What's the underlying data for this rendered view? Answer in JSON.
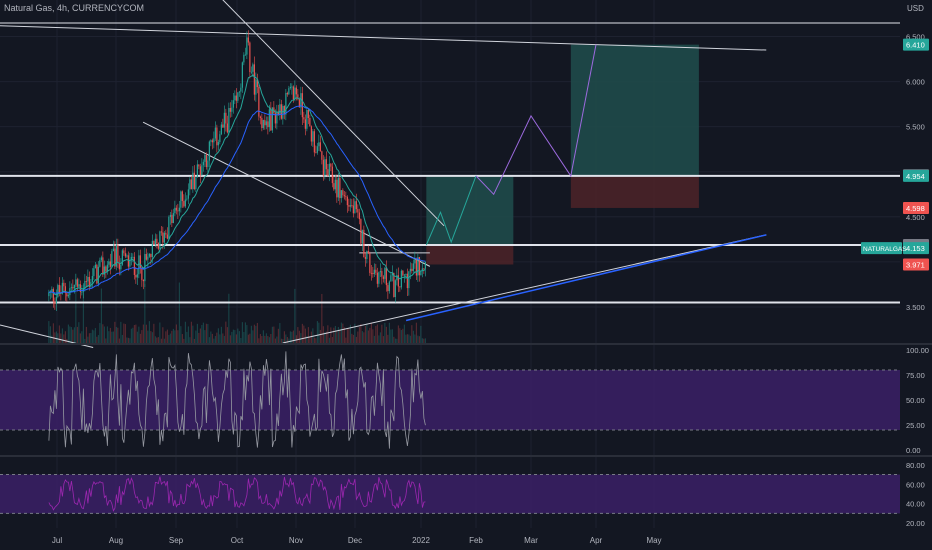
{
  "header": {
    "symbol_line": "Natural Gas, 4h, CURRENCYCOM",
    "currency": "USD"
  },
  "colors": {
    "background": "#131722",
    "grid": "#1e2230",
    "axis_text": "#b2b5be",
    "candle_up": "#26a69a",
    "candle_down": "#ef5350",
    "ema_fast": "#26a69a",
    "ema_slow": "#2962ff",
    "oscillator": "#9598a1",
    "rsi": "#9c27b0",
    "band": "#3b2066",
    "target_box": "#1f4a4a",
    "stop_box": "#4a2228",
    "projection": "#9c6ade",
    "trendline": "#d1d4dc"
  },
  "chart_data": [
    {
      "type": "candlestick",
      "title": "Natural Gas, 4h, CURRENCYCOM",
      "x_labels": [
        "Jul",
        "Aug",
        "Sep",
        "Oct",
        "Nov",
        "Dec",
        "2022",
        "Feb",
        "Mar",
        "Apr",
        "May"
      ],
      "y_ticks": [
        3.5,
        4.0,
        4.5,
        5.0,
        5.5,
        6.0,
        6.5
      ],
      "y_tick_labels": [
        "3.500",
        "4.000",
        "4.500",
        "5.000",
        "5.500",
        "6.000",
        "6.500"
      ],
      "ylim": [
        3.1,
        6.75
      ],
      "approx_closes": [
        {
          "date": "2021-06-28",
          "close": 3.62
        },
        {
          "date": "2021-07-15",
          "close": 3.75
        },
        {
          "date": "2021-08-01",
          "close": 4.05
        },
        {
          "date": "2021-08-15",
          "close": 3.92
        },
        {
          "date": "2021-09-01",
          "close": 4.55
        },
        {
          "date": "2021-09-15",
          "close": 5.15
        },
        {
          "date": "2021-10-01",
          "close": 5.75
        },
        {
          "date": "2021-10-06",
          "close": 6.4
        },
        {
          "date": "2021-10-15",
          "close": 5.5
        },
        {
          "date": "2021-11-01",
          "close": 5.9
        },
        {
          "date": "2021-11-15",
          "close": 5.05
        },
        {
          "date": "2021-12-01",
          "close": 4.55
        },
        {
          "date": "2021-12-08",
          "close": 3.95
        },
        {
          "date": "2021-12-20",
          "close": 3.72
        },
        {
          "date": "2022-01-04",
          "close": 4.05
        }
      ],
      "horizontal_levels": [
        6.65,
        4.954,
        4.187,
        3.55
      ],
      "price_labels": [
        {
          "text": "6.410",
          "value": 6.41,
          "color": "#26a69a"
        },
        {
          "text": "4.961",
          "value": 4.961,
          "color": "#787b86"
        },
        {
          "text": "4.954",
          "value": 4.954,
          "color": "#26a69a"
        },
        {
          "text": "4.598",
          "value": 4.598,
          "color": "#ef5350"
        },
        {
          "text": "4.187",
          "value": 4.187,
          "color": "#787b86"
        },
        {
          "text": "4.153",
          "value": 4.153,
          "color": "#26a69a"
        },
        {
          "text": "3.971",
          "value": 3.971,
          "color": "#ef5350"
        }
      ],
      "symbol_tag": {
        "text": "NATURALGAS",
        "value": 4.153
      },
      "positions": [
        {
          "name": "long-position-1",
          "from": "2022-01-04",
          "to": "2022-02-20",
          "entry": 4.187,
          "target": 4.954,
          "stop": 3.971
        },
        {
          "name": "long-position-2",
          "from": "2022-03-20",
          "to": "2022-05-25",
          "entry": 4.954,
          "target": 6.41,
          "stop": 4.598
        }
      ],
      "projection_path": [
        {
          "date": "2022-01-04",
          "price": 4.187
        },
        {
          "date": "2022-01-12",
          "price": 4.55
        },
        {
          "date": "2022-01-18",
          "price": 4.22
        },
        {
          "date": "2022-02-01",
          "price": 4.954
        },
        {
          "date": "2022-02-10",
          "price": 4.75
        },
        {
          "date": "2022-03-01",
          "price": 5.62
        },
        {
          "date": "2022-03-20",
          "price": 4.954
        },
        {
          "date": "2022-04-01",
          "price": 6.41
        }
      ]
    },
    {
      "type": "line",
      "name": "stochastic-oscillator",
      "y_ticks": [
        0,
        25,
        50,
        75,
        100
      ],
      "y_tick_labels": [
        "0.00",
        "25.00",
        "50.00",
        "75.00",
        "100.00"
      ],
      "ylim": [
        -5,
        105
      ],
      "band": [
        20,
        80
      ]
    },
    {
      "type": "line",
      "name": "rsi",
      "y_ticks": [
        20,
        40,
        60,
        80
      ],
      "y_tick_labels": [
        "20.00",
        "40.00",
        "60.00",
        "80.00"
      ],
      "ylim": [
        15,
        87
      ],
      "band": [
        30,
        70
      ]
    }
  ]
}
